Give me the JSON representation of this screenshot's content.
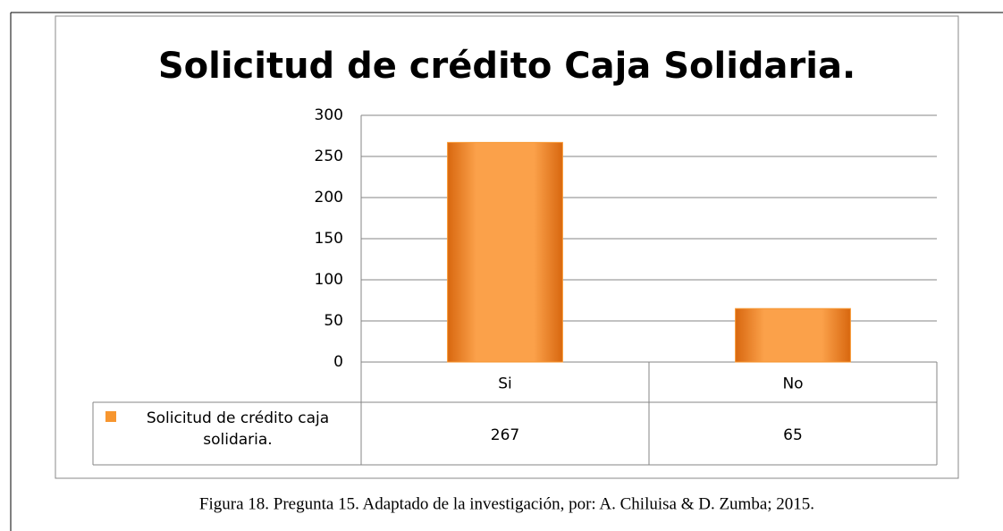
{
  "chart_data": {
    "type": "bar",
    "title": "Solicitud de crédito Caja Solidaria.",
    "categories": [
      "Si",
      "No"
    ],
    "series": [
      {
        "name": "Solicitud de crédito caja solidaria.",
        "color": "#f7962f",
        "values": [
          267,
          65
        ]
      }
    ],
    "ylim": [
      0,
      300
    ],
    "yticks": [
      0,
      50,
      100,
      150,
      200,
      250,
      300
    ],
    "grid": true,
    "legend": "table"
  },
  "caption": "Figura 18. Pregunta 15. Adaptado de la investigación, por: A. Chiluisa & D. Zumba; 2015."
}
